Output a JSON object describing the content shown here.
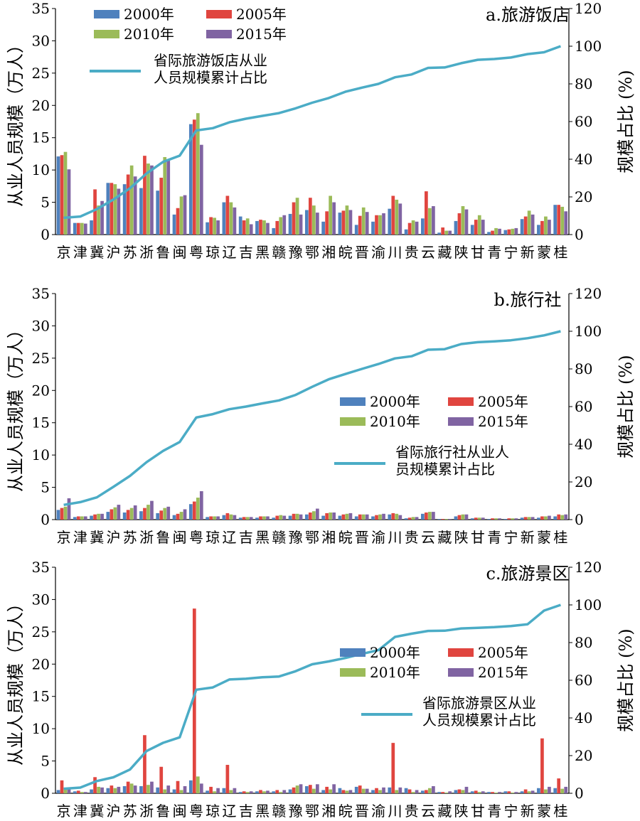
{
  "chart_data": [
    {
      "type": "bar",
      "title": "a.旅游饭店",
      "ylabel": "从业人员规模（万人）",
      "y2label": "规模占比 (%)",
      "ylim": [
        0,
        35
      ],
      "y2lim": [
        0,
        120
      ],
      "yticks": [
        0,
        5,
        10,
        15,
        20,
        25,
        30,
        35
      ],
      "y2ticks": [
        0,
        20,
        40,
        60,
        80,
        100,
        120
      ],
      "legend_position": "top-left",
      "categories": [
        "京",
        "津",
        "冀",
        "沪",
        "苏",
        "浙",
        "鲁",
        "闽",
        "粤",
        "琼",
        "辽",
        "吉",
        "黑",
        "赣",
        "豫",
        "鄂",
        "湘",
        "皖",
        "晋",
        "渝",
        "川",
        "贵",
        "云",
        "藏",
        "陕",
        "甘",
        "青",
        "宁",
        "新",
        "蒙",
        "桂"
      ],
      "series": [
        {
          "name": "2000年",
          "color": "#4F81BD",
          "values": [
            12.1,
            1.8,
            2.2,
            8.0,
            7.8,
            7.2,
            6.8,
            3.1,
            17.1,
            1.9,
            5.0,
            2.8,
            2.1,
            1.0,
            3.2,
            3.8,
            2.0,
            3.4,
            1.5,
            2.0,
            4.0,
            0.8,
            2.5,
            0.3,
            2.1,
            1.5,
            0.4,
            0.7,
            2.4,
            1.5,
            4.6
          ]
        },
        {
          "name": "2005年",
          "color": "#E0453F",
          "values": [
            12.3,
            1.8,
            7.0,
            8.0,
            9.3,
            12.2,
            8.8,
            4.1,
            17.8,
            2.7,
            6.0,
            2.2,
            2.3,
            2.1,
            5.0,
            5.7,
            3.6,
            3.7,
            2.9,
            3.0,
            6.0,
            1.8,
            6.7,
            1.1,
            3.3,
            2.3,
            0.6,
            0.8,
            2.8,
            2.1,
            4.6
          ]
        },
        {
          "name": "2010年",
          "color": "#9BBB59",
          "values": [
            12.8,
            1.8,
            4.5,
            7.8,
            10.7,
            11.0,
            12.0,
            5.9,
            18.8,
            2.6,
            5.0,
            2.5,
            2.2,
            2.7,
            5.7,
            4.5,
            6.0,
            4.5,
            4.2,
            3.0,
            5.4,
            2.2,
            4.1,
            0.6,
            4.4,
            3.0,
            1.0,
            0.9,
            3.7,
            2.8,
            4.3
          ]
        },
        {
          "name": "2015年",
          "color": "#8064A2",
          "values": [
            10.1,
            1.7,
            5.2,
            7.1,
            9.0,
            10.7,
            11.5,
            6.1,
            13.9,
            2.2,
            4.2,
            1.6,
            1.8,
            3.0,
            3.1,
            3.4,
            5.0,
            3.8,
            3.5,
            3.3,
            4.8,
            2.0,
            4.4,
            0.6,
            3.9,
            2.3,
            0.9,
            1.0,
            3.1,
            2.3,
            3.6
          ]
        }
      ],
      "cumulative": {
        "name": "省际旅游饭店从业人员规模累计占比",
        "color": "#4BACC6",
        "values": [
          8.9,
          9.6,
          13.5,
          18.6,
          24.6,
          32.4,
          38.6,
          41.9,
          55.3,
          56.5,
          59.6,
          61.5,
          63,
          64.5,
          67,
          70,
          72.5,
          75.8,
          78,
          80,
          83.5,
          85,
          88.5,
          88.7,
          91,
          92.8,
          93.2,
          94,
          95.8,
          96.8,
          100
        ]
      }
    },
    {
      "type": "bar",
      "title": "b.旅行社",
      "ylabel": "从业人员规模（万人）",
      "y2label": "规模占比 (%)",
      "ylim": [
        0,
        35
      ],
      "y2lim": [
        0,
        120
      ],
      "yticks": [
        0,
        5,
        10,
        15,
        20,
        25,
        30,
        35
      ],
      "y2ticks": [
        0,
        20,
        40,
        60,
        80,
        100,
        120
      ],
      "legend_position": "center-right",
      "categories": [
        "京",
        "津",
        "冀",
        "沪",
        "苏",
        "浙",
        "鲁",
        "闽",
        "粤",
        "琼",
        "辽",
        "吉",
        "黑",
        "赣",
        "豫",
        "鄂",
        "湘",
        "皖",
        "晋",
        "渝",
        "川",
        "贵",
        "云",
        "藏",
        "陕",
        "甘",
        "青",
        "宁",
        "新",
        "蒙",
        "桂"
      ],
      "series": [
        {
          "name": "2000年",
          "color": "#4F81BD",
          "values": [
            1.5,
            0.4,
            0.6,
            1.2,
            1.1,
            1.3,
            1.0,
            0.7,
            2.4,
            0.4,
            0.7,
            0.3,
            0.3,
            0.3,
            0.6,
            0.8,
            0.6,
            0.6,
            0.5,
            0.5,
            0.8,
            0.2,
            0.9,
            0.1,
            0.5,
            0.2,
            0.1,
            0.1,
            0.3,
            0.3,
            0.5
          ]
        },
        {
          "name": "2005年",
          "color": "#E0453F",
          "values": [
            1.8,
            0.5,
            0.8,
            1.6,
            1.5,
            1.8,
            1.4,
            0.9,
            2.8,
            0.5,
            1.0,
            0.4,
            0.5,
            0.6,
            0.9,
            1.1,
            1.0,
            0.8,
            0.8,
            0.7,
            1.0,
            0.3,
            1.1,
            0.1,
            0.7,
            0.3,
            0.2,
            0.2,
            0.4,
            0.5,
            0.8
          ]
        },
        {
          "name": "2010年",
          "color": "#9BBB59",
          "values": [
            2.0,
            0.5,
            0.9,
            1.9,
            1.8,
            2.3,
            1.8,
            1.2,
            3.4,
            0.5,
            0.8,
            0.4,
            0.5,
            0.7,
            0.9,
            1.3,
            1.1,
            0.9,
            0.8,
            0.8,
            0.9,
            0.4,
            1.2,
            0.1,
            0.8,
            0.3,
            0.2,
            0.2,
            0.4,
            0.5,
            0.7
          ]
        },
        {
          "name": "2015年",
          "color": "#8064A2",
          "values": [
            3.3,
            0.5,
            0.9,
            2.3,
            2.2,
            2.9,
            2.0,
            1.6,
            4.4,
            0.5,
            0.7,
            0.4,
            0.5,
            0.6,
            0.8,
            1.7,
            1.1,
            1.0,
            0.8,
            0.9,
            0.7,
            0.4,
            1.2,
            0.1,
            0.8,
            0.3,
            0.2,
            0.2,
            0.4,
            0.6,
            0.8
          ]
        }
      ],
      "cumulative": {
        "name": "省际旅行社从业人员规模累计占比",
        "color": "#4BACC6",
        "values": [
          7.8,
          9.3,
          11.8,
          17.4,
          23.2,
          30.5,
          36.5,
          41.2,
          54.2,
          56,
          58.6,
          60,
          61.7,
          63.3,
          66.2,
          70.5,
          74.5,
          77.3,
          80,
          82.6,
          85.6,
          86.7,
          90.2,
          90.5,
          93.2,
          94.2,
          94.6,
          95.2,
          96.3,
          97.8,
          100
        ]
      }
    },
    {
      "type": "bar",
      "title": "c.旅游景区",
      "ylabel": "从业人员规模（万人）",
      "y2label": "规模占比 (%)",
      "ylim": [
        0,
        35
      ],
      "y2lim": [
        0,
        120
      ],
      "yticks": [
        0,
        5,
        10,
        15,
        20,
        25,
        30,
        35
      ],
      "y2ticks": [
        0,
        20,
        40,
        60,
        80,
        100,
        120
      ],
      "legend_position": "center-right",
      "categories": [
        "京",
        "津",
        "冀",
        "沪",
        "苏",
        "浙",
        "鲁",
        "闽",
        "粤",
        "琼",
        "辽",
        "吉",
        "黑",
        "赣",
        "豫",
        "鄂",
        "湘",
        "皖",
        "晋",
        "渝",
        "川",
        "贵",
        "云",
        "藏",
        "陕",
        "甘",
        "青",
        "宁",
        "新",
        "蒙",
        "桂"
      ],
      "series": [
        {
          "name": "2000年",
          "color": "#4F81BD",
          "values": [
            0.5,
            0.3,
            0.6,
            0.8,
            1.1,
            1.1,
            0.9,
            0.6,
            2.0,
            0.4,
            0.8,
            0.2,
            0.3,
            0.3,
            0.6,
            1.1,
            0.5,
            0.8,
            1.0,
            0.5,
            0.9,
            0.8,
            0.4,
            0.2,
            0.5,
            0.3,
            0.2,
            0.3,
            0.3,
            0.8,
            0.8
          ]
        },
        {
          "name": "2005年",
          "color": "#E0453F",
          "values": [
            2.0,
            0.4,
            2.5,
            1.2,
            1.8,
            9.0,
            4.1,
            1.9,
            28.6,
            1.0,
            4.4,
            0.3,
            0.5,
            0.5,
            0.9,
            1.3,
            1.0,
            0.5,
            1.2,
            0.8,
            7.8,
            0.6,
            0.5,
            0.2,
            0.6,
            0.4,
            0.2,
            0.3,
            0.6,
            8.5,
            2.3
          ]
        },
        {
          "name": "2010年",
          "color": "#9BBB59",
          "values": [
            0.7,
            0.2,
            1.0,
            0.8,
            1.5,
            1.3,
            0.6,
            0.5,
            2.6,
            0.3,
            0.5,
            0.2,
            0.3,
            0.2,
            1.2,
            0.7,
            0.6,
            0.4,
            0.7,
            0.5,
            0.5,
            0.2,
            0.8,
            0.1,
            0.5,
            0.2,
            0.1,
            0.1,
            0.3,
            0.6,
            0.7
          ]
        },
        {
          "name": "2015年",
          "color": "#8064A2",
          "values": [
            0.6,
            0.2,
            0.9,
            1.0,
            1.2,
            1.8,
            1.2,
            1.1,
            1.5,
            0.8,
            0.8,
            0.3,
            0.4,
            0.5,
            1.4,
            1.4,
            1.4,
            0.5,
            0.7,
            0.9,
            0.9,
            0.5,
            1.1,
            0.3,
            1.0,
            0.3,
            0.2,
            0.2,
            0.4,
            1.0,
            1.0
          ]
        }
      ],
      "cumulative": {
        "name": "省际旅游景区从业人员规模累计占比",
        "color": "#4BACC6",
        "values": [
          2.4,
          3,
          6.5,
          8.5,
          12.6,
          22.4,
          26.8,
          29.7,
          55,
          56.2,
          60.4,
          60.8,
          61.6,
          62,
          64.8,
          68.5,
          70,
          71.8,
          74,
          76,
          83,
          84.7,
          86.2,
          86.3,
          87.5,
          87.8,
          88.2,
          88.8,
          89.7,
          97,
          100
        ]
      }
    }
  ]
}
